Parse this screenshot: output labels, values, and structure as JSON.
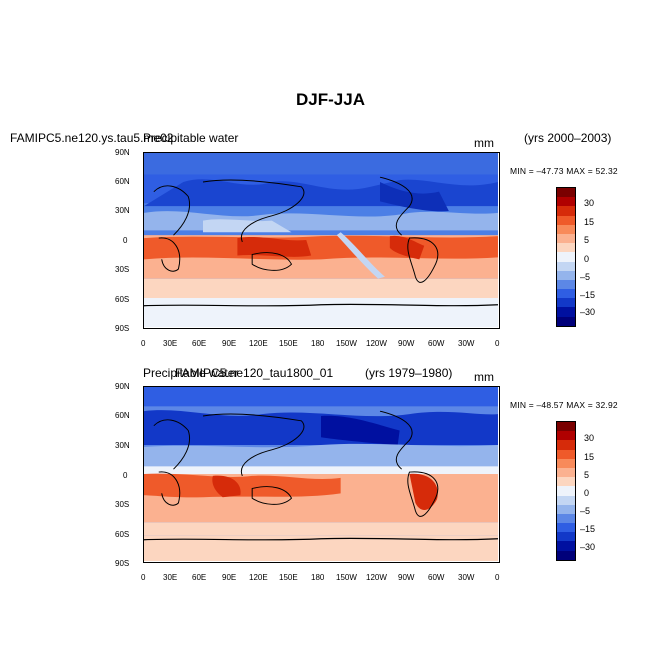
{
  "figure": {
    "title": "DJF-JJA"
  },
  "panels": [
    {
      "left_title": "FAMIPC5.ne120.ys.tau5.me02",
      "overlay_title": "Precipitable water",
      "units": "mm",
      "years": "(yrs 2000–2003)",
      "stats": "MIN = –47.73  MAX =  52.32"
    },
    {
      "left_title": "FAMIPC5.ne120_tau1800_01",
      "overlay_title": "Precipitable water",
      "units": "mm",
      "years": "(yrs 1979–1980)",
      "stats": "MIN = –48.57  MAX =  32.92"
    }
  ],
  "lat_ticks": [
    "90N",
    "60N",
    "30N",
    "0",
    "30S",
    "60S",
    "90S"
  ],
  "lon_ticks": [
    "0",
    "30E",
    "60E",
    "90E",
    "120E",
    "150E",
    "180",
    "150W",
    "120W",
    "90W",
    "60W",
    "30W",
    "0"
  ],
  "colorbar": {
    "labels": [
      "30",
      "15",
      "5",
      "0",
      "–5",
      "–15",
      "–30"
    ],
    "colors": [
      "#7a0000",
      "#b00000",
      "#d62b0a",
      "#ef5a2a",
      "#f88a5a",
      "#fbb190",
      "#fcd6c0",
      "#eef3fb",
      "#c3d6f3",
      "#94b4ec",
      "#5c87e6",
      "#2f5ee3",
      "#1238c8",
      "#0010a0",
      "#00007a"
    ]
  }
}
